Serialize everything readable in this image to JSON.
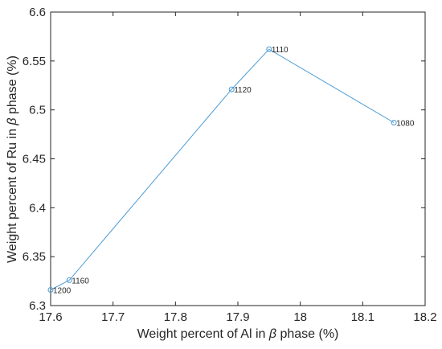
{
  "chart_data": {
    "type": "line",
    "title": "",
    "xlabel": {
      "pre": "Weight percent of Al in ",
      "sym": "β",
      "post": " phase (%)"
    },
    "ylabel": {
      "pre": "Weight percent of Ru in ",
      "sym": "β",
      "post": " phase (%)"
    },
    "xlim": [
      17.6,
      18.2
    ],
    "ylim": [
      6.3,
      6.6
    ],
    "xticks": [
      "17.6",
      "17.7",
      "17.8",
      "17.9",
      "18",
      "18.1",
      "18.2"
    ],
    "yticks": [
      "6.3",
      "6.35",
      "6.4",
      "6.45",
      "6.5",
      "6.55",
      "6.6"
    ],
    "grid": false,
    "line_color": "#4a9bd4",
    "series": [
      {
        "x": [
          17.6,
          17.63,
          17.89,
          17.95,
          18.15
        ],
        "y": [
          6.316,
          6.326,
          6.521,
          6.562,
          6.487
        ],
        "labels": [
          "1200",
          "1160",
          "1120",
          "1110",
          "1080"
        ]
      }
    ]
  }
}
